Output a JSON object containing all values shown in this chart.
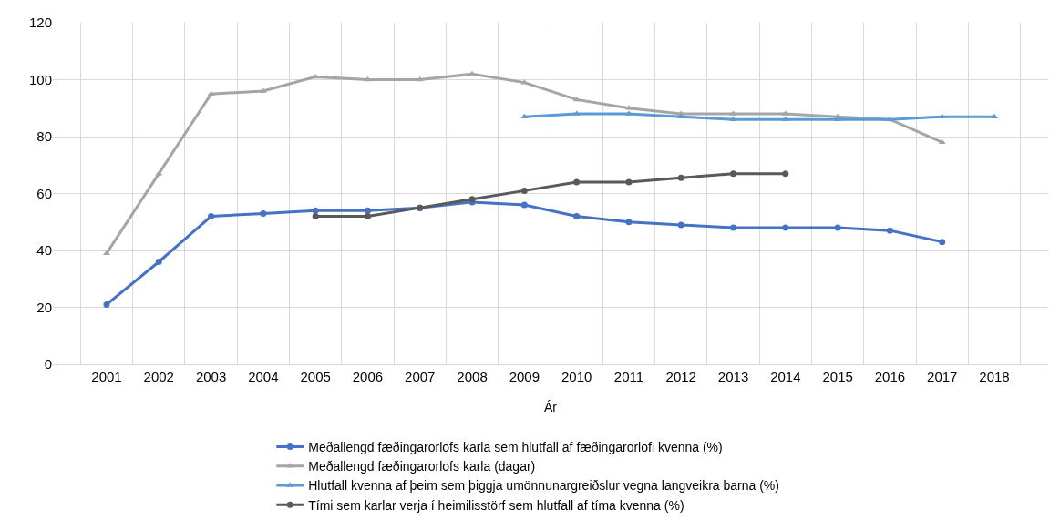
{
  "chart_data": {
    "type": "line",
    "xlabel": "Ár",
    "categories": [
      "2001",
      "2002",
      "2003",
      "2004",
      "2005",
      "2006",
      "2007",
      "2008",
      "2009",
      "2010",
      "2011",
      "2012",
      "2013",
      "2014",
      "2015",
      "2016",
      "2017",
      "2018"
    ],
    "ylim": [
      0,
      120
    ],
    "yticks": [
      0,
      20,
      40,
      60,
      80,
      100,
      120
    ],
    "grid": true,
    "legend": "bottom",
    "series": [
      {
        "name": "Meðallengd fæðingarorlofs karla sem hlutfall af fæðingarorlofi kvenna (%)",
        "color": "#4472c4",
        "marker": "circle",
        "values": [
          21,
          36,
          52,
          53,
          54,
          54,
          55,
          57,
          56,
          52,
          50,
          49,
          48,
          48,
          48,
          47,
          43,
          null
        ]
      },
      {
        "name": "Meðallengd fæðingarorlofs karla (dagar)",
        "color": "#a5a5a5",
        "marker": "triangle",
        "values": [
          39,
          67,
          95,
          96,
          101,
          100,
          100,
          102,
          99,
          93,
          90,
          88,
          88,
          88,
          87,
          86,
          78,
          null
        ]
      },
      {
        "name": "Hlutfall kvenna af þeim sem þiggja umönnunargreiðslur vegna langveikra barna (%)",
        "color": "#5b9bd5",
        "marker": "triangle",
        "values": [
          null,
          null,
          null,
          null,
          null,
          null,
          null,
          null,
          87,
          88,
          88,
          87,
          86,
          86,
          86,
          86,
          87,
          87
        ]
      },
      {
        "name": "Tími sem karlar verja í heimilisstörf sem hlutfall af tíma kvenna (%)",
        "color": "#595959",
        "marker": "circle",
        "values": [
          null,
          null,
          null,
          null,
          52,
          52,
          55,
          58,
          61,
          64,
          64,
          65.5,
          67,
          67,
          null,
          null,
          null,
          null
        ]
      }
    ]
  }
}
